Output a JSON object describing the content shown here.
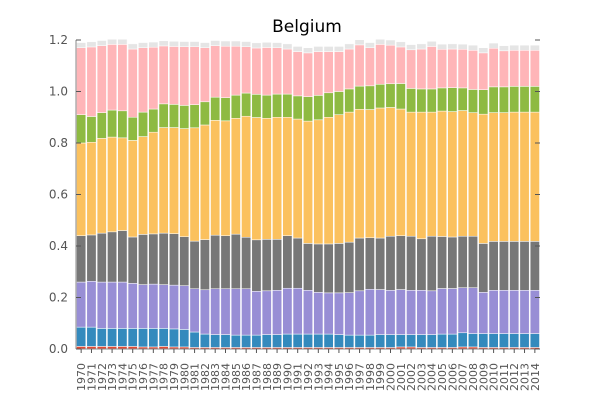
{
  "chart_data": {
    "type": "bar",
    "stacked": true,
    "title": "Belgium",
    "xlabel": "",
    "ylabel": "",
    "ylim": [
      0.0,
      1.2
    ],
    "yticks": [
      "0.0",
      "0.2",
      "0.4",
      "0.6",
      "0.8",
      "1.0",
      "1.2"
    ],
    "grid": false,
    "legend": "none",
    "categories": [
      "1970",
      "1971",
      "1972",
      "1973",
      "1974",
      "1975",
      "1976",
      "1977",
      "1978",
      "1979",
      "1980",
      "1981",
      "1982",
      "1983",
      "1984",
      "1985",
      "1986",
      "1987",
      "1988",
      "1989",
      "1990",
      "1991",
      "1992",
      "1993",
      "1994",
      "1995",
      "1996",
      "1997",
      "1998",
      "1999",
      "2000",
      "2001",
      "2002",
      "2003",
      "2004",
      "2005",
      "2006",
      "2007",
      "2008",
      "2009",
      "2010",
      "2011",
      "2012",
      "2013",
      "2014"
    ],
    "series": [
      {
        "color": "#e24a33",
        "values": [
          0.01,
          0.01,
          0.01,
          0.01,
          0.01,
          0.01,
          0.008,
          0.008,
          0.01,
          0.008,
          0.008,
          0.006,
          0.006,
          0.006,
          0.006,
          0.006,
          0.006,
          0.006,
          0.006,
          0.006,
          0.006,
          0.006,
          0.006,
          0.006,
          0.006,
          0.006,
          0.006,
          0.006,
          0.006,
          0.006,
          0.006,
          0.008,
          0.008,
          0.006,
          0.006,
          0.006,
          0.006,
          0.008,
          0.008,
          0.006,
          0.006,
          0.006,
          0.006,
          0.006,
          0.006
        ]
      },
      {
        "color": "#348abd",
        "values": [
          0.075,
          0.075,
          0.07,
          0.07,
          0.07,
          0.07,
          0.072,
          0.072,
          0.07,
          0.07,
          0.068,
          0.06,
          0.052,
          0.05,
          0.05,
          0.048,
          0.048,
          0.048,
          0.05,
          0.05,
          0.052,
          0.052,
          0.052,
          0.052,
          0.052,
          0.05,
          0.048,
          0.048,
          0.048,
          0.05,
          0.05,
          0.048,
          0.048,
          0.05,
          0.05,
          0.052,
          0.052,
          0.055,
          0.052,
          0.054,
          0.054,
          0.054,
          0.054,
          0.054,
          0.054
        ]
      },
      {
        "color": "#988ed5",
        "values": [
          0.175,
          0.178,
          0.18,
          0.18,
          0.18,
          0.175,
          0.17,
          0.172,
          0.17,
          0.17,
          0.17,
          0.168,
          0.172,
          0.178,
          0.178,
          0.18,
          0.18,
          0.17,
          0.17,
          0.172,
          0.178,
          0.178,
          0.17,
          0.162,
          0.16,
          0.162,
          0.165,
          0.172,
          0.178,
          0.175,
          0.172,
          0.175,
          0.172,
          0.172,
          0.17,
          0.177,
          0.177,
          0.175,
          0.178,
          0.16,
          0.168,
          0.168,
          0.168,
          0.168,
          0.168
        ]
      },
      {
        "color": "#777777",
        "values": [
          0.18,
          0.18,
          0.19,
          0.195,
          0.2,
          0.18,
          0.195,
          0.195,
          0.2,
          0.2,
          0.19,
          0.185,
          0.195,
          0.208,
          0.206,
          0.212,
          0.2,
          0.2,
          0.2,
          0.198,
          0.204,
          0.195,
          0.182,
          0.188,
          0.19,
          0.192,
          0.196,
          0.205,
          0.2,
          0.2,
          0.21,
          0.209,
          0.21,
          0.2,
          0.212,
          0.202,
          0.2,
          0.2,
          0.2,
          0.19,
          0.19,
          0.19,
          0.19,
          0.19,
          0.19
        ]
      },
      {
        "color": "#fbc15e",
        "values": [
          0.36,
          0.36,
          0.368,
          0.368,
          0.36,
          0.375,
          0.38,
          0.395,
          0.41,
          0.412,
          0.42,
          0.44,
          0.445,
          0.446,
          0.446,
          0.45,
          0.47,
          0.475,
          0.47,
          0.474,
          0.46,
          0.462,
          0.475,
          0.482,
          0.492,
          0.5,
          0.505,
          0.5,
          0.498,
          0.505,
          0.5,
          0.492,
          0.482,
          0.492,
          0.482,
          0.487,
          0.487,
          0.488,
          0.48,
          0.502,
          0.5,
          0.5,
          0.502,
          0.502,
          0.502
        ]
      },
      {
        "color": "#8eba42",
        "values": [
          0.11,
          0.1,
          0.1,
          0.105,
          0.105,
          0.09,
          0.095,
          0.09,
          0.092,
          0.09,
          0.09,
          0.09,
          0.09,
          0.09,
          0.09,
          0.09,
          0.09,
          0.09,
          0.09,
          0.09,
          0.09,
          0.09,
          0.095,
          0.095,
          0.095,
          0.09,
          0.09,
          0.09,
          0.092,
          0.092,
          0.092,
          0.099,
          0.092,
          0.09,
          0.09,
          0.09,
          0.093,
          0.088,
          0.09,
          0.095,
          0.1,
          0.1,
          0.1,
          0.1,
          0.1
        ]
      },
      {
        "color": "#ffb5b8",
        "values": [
          0.26,
          0.27,
          0.26,
          0.255,
          0.258,
          0.265,
          0.25,
          0.24,
          0.225,
          0.225,
          0.228,
          0.225,
          0.21,
          0.2,
          0.2,
          0.19,
          0.18,
          0.18,
          0.185,
          0.18,
          0.175,
          0.172,
          0.17,
          0.17,
          0.16,
          0.155,
          0.155,
          0.16,
          0.148,
          0.155,
          0.15,
          0.142,
          0.15,
          0.155,
          0.165,
          0.15,
          0.15,
          0.15,
          0.152,
          0.143,
          0.15,
          0.14,
          0.14,
          0.14,
          0.14
        ]
      },
      {
        "color": "#e5e5e5",
        "values": [
          0.02,
          0.02,
          0.02,
          0.02,
          0.02,
          0.02,
          0.02,
          0.02,
          0.02,
          0.02,
          0.02,
          0.02,
          0.02,
          0.02,
          0.02,
          0.02,
          0.02,
          0.02,
          0.02,
          0.02,
          0.02,
          0.02,
          0.02,
          0.02,
          0.02,
          0.02,
          0.02,
          0.02,
          0.02,
          0.02,
          0.02,
          0.02,
          0.02,
          0.02,
          0.02,
          0.02,
          0.02,
          0.02,
          0.02,
          0.02,
          0.02,
          0.02,
          0.02,
          0.02,
          0.02
        ]
      }
    ]
  }
}
